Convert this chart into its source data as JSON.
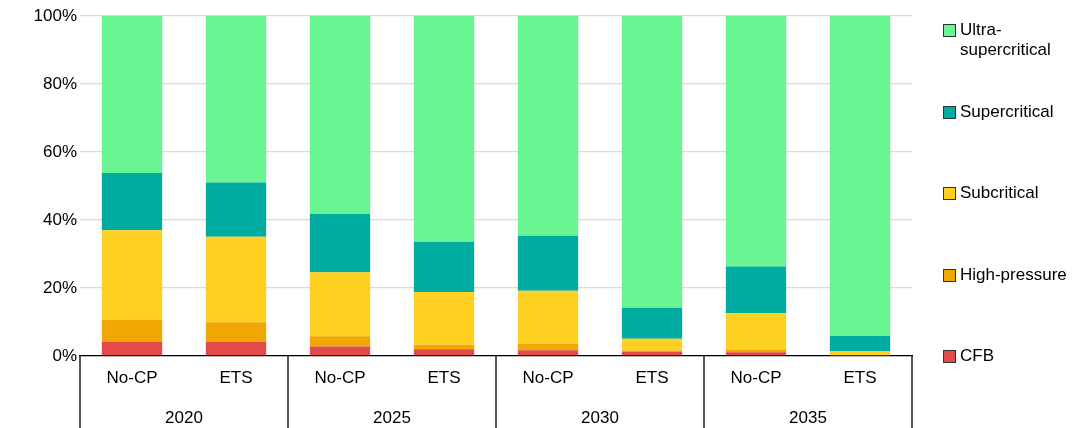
{
  "chart_data": {
    "type": "bar",
    "stacked": true,
    "categories": [
      "No-CP",
      "ETS",
      "No-CP",
      "ETS",
      "No-CP",
      "ETS",
      "No-CP",
      "ETS"
    ],
    "annotations": [
      "2020",
      "2025",
      "2030",
      "2035"
    ],
    "ylim": [
      0,
      100
    ],
    "yticks": [
      {
        "value": 0,
        "label": "0%"
      },
      {
        "value": 20,
        "label": "20%"
      },
      {
        "value": 40,
        "label": "40%"
      },
      {
        "value": 60,
        "label": "60%"
      },
      {
        "value": 80,
        "label": "80%"
      },
      {
        "value": 100,
        "label": "100%"
      }
    ],
    "grid": "y",
    "legend": "right",
    "series": [
      {
        "name": "CFB",
        "color": "#e34a4a",
        "values": [
          4.3,
          4.1,
          2.8,
          2.0,
          1.7,
          1.2,
          1.1,
          null
        ]
      },
      {
        "name": "High-pressure",
        "color": "#f0a800",
        "values": [
          6.3,
          5.8,
          3.0,
          1.3,
          2.0,
          0.4,
          0.7,
          null
        ]
      },
      {
        "name": "Subcritical",
        "color": "#fed022",
        "values": [
          26.4,
          25.2,
          18.8,
          15.5,
          15.5,
          3.5,
          10.8,
          1.5
        ]
      },
      {
        "name": "Supercritical",
        "color": "#00aba0",
        "values": [
          16.8,
          15.9,
          17.2,
          14.8,
          16.2,
          9.1,
          13.7,
          4.4
        ]
      },
      {
        "name": "Ultra-supercritical",
        "color": "#6af593",
        "values": [
          46.2,
          49.0,
          58.2,
          66.4,
          64.6,
          85.8,
          73.7,
          94.1
        ]
      }
    ]
  }
}
